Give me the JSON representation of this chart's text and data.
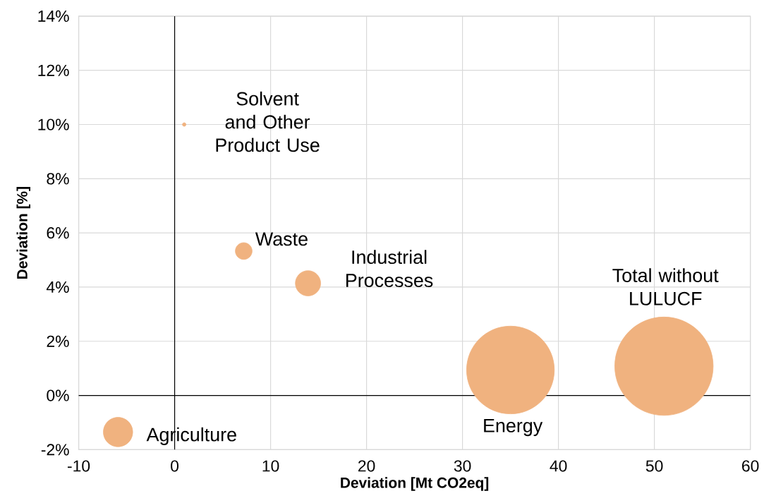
{
  "chart_data": {
    "type": "bubble",
    "xlabel": "Deviation [Mt CO2eq]",
    "ylabel": "Deviation [%]",
    "x": [
      -5.9,
      1.0,
      7.2,
      13.9,
      35.0,
      51.0
    ],
    "values": [
      -1.35,
      10.0,
      5.33,
      4.14,
      0.94,
      1.08
    ],
    "sizes": [
      0.089,
      0.0013,
      0.029,
      0.066,
      0.795,
      1
    ],
    "color": "#f0b27f",
    "xlim": [
      -10,
      60
    ],
    "xticks": [
      -10,
      0,
      10,
      20,
      30,
      40,
      50,
      60
    ],
    "ylim": [
      -2,
      14
    ],
    "yticks": [
      {
        "value": -2,
        "label": "-2%"
      },
      {
        "value": 0,
        "label": "0%"
      },
      {
        "value": 2,
        "label": "2%"
      },
      {
        "value": 4,
        "label": "4%"
      },
      {
        "value": 6,
        "label": "6%"
      },
      {
        "value": 8,
        "label": "8%"
      },
      {
        "value": 10,
        "label": "10%"
      },
      {
        "value": 12,
        "label": "12%"
      },
      {
        "value": 14,
        "label": "14%"
      }
    ],
    "grid": true,
    "annotations": [
      "Agriculture",
      "Solvent and Other Product Use",
      "Waste",
      "Industrial Processes",
      "Energy",
      "Total without LULUCF"
    ]
  }
}
